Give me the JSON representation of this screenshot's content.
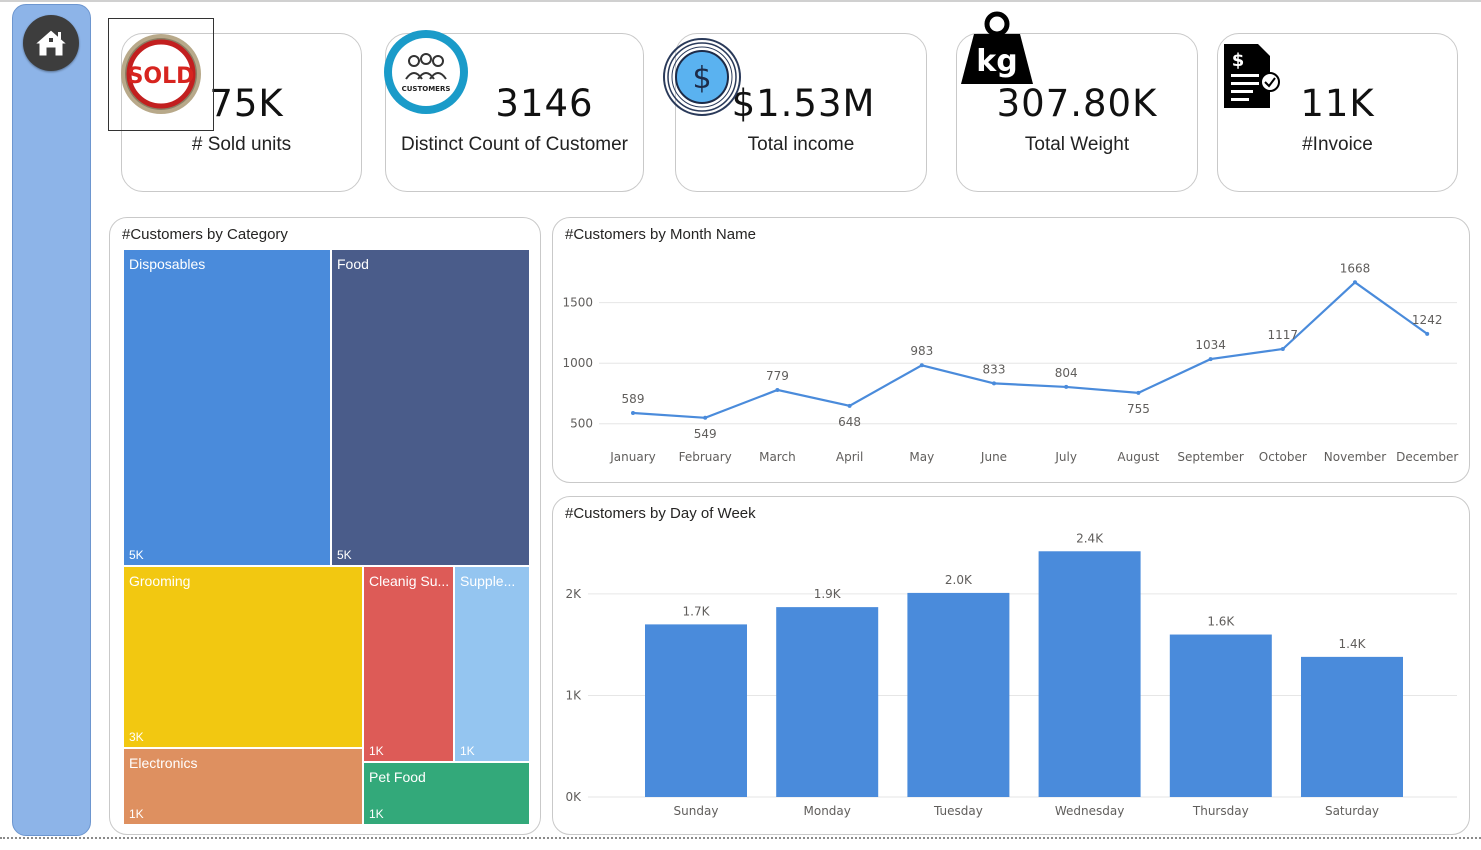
{
  "nav": {
    "home_icon": "home-icon"
  },
  "kpis": [
    {
      "value": "75K",
      "label": "# Sold units",
      "icon": "sold-badge-icon",
      "icon_text": "SOLD"
    },
    {
      "value": "3146",
      "label": "Distinct Count of Customer",
      "icon": "customers-icon",
      "icon_text": "CUSTOMERS"
    },
    {
      "value": "$1.53M",
      "label": "Total income",
      "icon": "dollar-coin-icon",
      "icon_text": "$"
    },
    {
      "value": "307.80K",
      "label": "Total Weight",
      "icon": "kg-weight-icon",
      "icon_text": "kg"
    },
    {
      "value": "11K",
      "label": "#Invoice",
      "icon": "invoice-icon",
      "icon_text": "$"
    }
  ],
  "treemap": {
    "title": "#Customers by Category",
    "tiles": [
      {
        "name": "Disposables",
        "value": "5K",
        "color": "#4a8bdb"
      },
      {
        "name": "Food",
        "value": "5K",
        "color": "#4a5c8a"
      },
      {
        "name": "Grooming",
        "value": "3K",
        "color": "#f2c811"
      },
      {
        "name": "Cleanig Su...",
        "value": "1K",
        "color": "#dd5b57"
      },
      {
        "name": "Supple...",
        "value": "1K",
        "color": "#94c5f0"
      },
      {
        "name": "Electronics",
        "value": "1K",
        "color": "#de9060"
      },
      {
        "name": "Pet Food",
        "value": "1K",
        "color": "#33a97a"
      }
    ]
  },
  "chart_data": [
    {
      "type": "line",
      "title": "#Customers by Month Name",
      "categories": [
        "January",
        "February",
        "March",
        "April",
        "May",
        "June",
        "July",
        "August",
        "September",
        "October",
        "November",
        "December"
      ],
      "values": [
        589,
        549,
        779,
        648,
        983,
        833,
        804,
        755,
        1034,
        1117,
        1668,
        1242
      ],
      "data_labels": [
        "589",
        "549",
        "779",
        "648",
        "983",
        "833",
        "804",
        "755",
        "1034",
        "1117",
        "1668",
        "1242"
      ],
      "yticks": [
        500,
        1000,
        1500
      ],
      "ytick_labels": [
        "500",
        "1000",
        "1500"
      ],
      "ylim": [
        440,
        1720
      ],
      "color": "#4a8bdb",
      "grid": true
    },
    {
      "type": "bar",
      "title": "#Customers by Day of Week",
      "categories": [
        "Sunday",
        "Monday",
        "Tuesday",
        "Wednesday",
        "Thursday",
        "Saturday"
      ],
      "values": [
        1700,
        1870,
        2010,
        2420,
        1600,
        1380
      ],
      "data_labels": [
        "1.7K",
        "1.9K",
        "2.0K",
        "2.4K",
        "1.6K",
        "1.4K"
      ],
      "yticks": [
        0,
        1000,
        2000
      ],
      "ytick_labels": [
        "0K",
        "1K",
        "2K"
      ],
      "ylim": [
        0,
        2600
      ],
      "color": "#4a8bdb",
      "grid": true
    }
  ]
}
